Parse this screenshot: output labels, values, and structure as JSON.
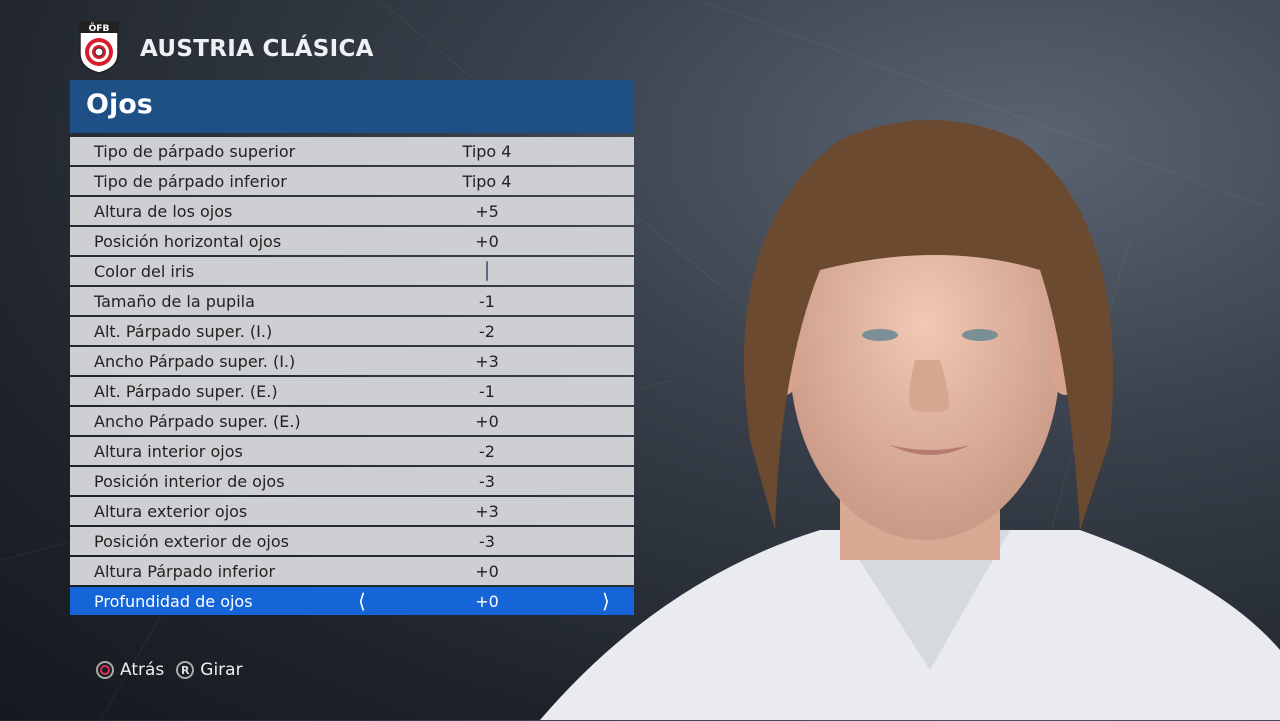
{
  "club": {
    "name": "AUSTRIA CLÁSICA",
    "logo_text": "ÖFB",
    "logo_colors": [
      "#d81e2c",
      "#ffffff"
    ]
  },
  "section": {
    "title": "Ojos"
  },
  "rows": [
    {
      "label": "Tipo de párpado superior",
      "value": "Tipo 4"
    },
    {
      "label": "Tipo de párpado inferior",
      "value": "Tipo 4"
    },
    {
      "label": "Altura de los ojos",
      "value": "+5"
    },
    {
      "label": "Posición horizontal ojos",
      "value": "+0"
    },
    {
      "label": "Color del iris",
      "value": "",
      "swatch_color": "#17212f"
    },
    {
      "label": "Tamaño de la pupila",
      "value": "-1"
    },
    {
      "label": "Alt. Párpado super. (I.)",
      "value": "-2"
    },
    {
      "label": "Ancho Párpado super. (I.)",
      "value": "+3"
    },
    {
      "label": "Alt. Párpado super. (E.)",
      "value": "-1"
    },
    {
      "label": "Ancho Párpado super. (E.)",
      "value": "+0"
    },
    {
      "label": "Altura interior ojos",
      "value": "-2"
    },
    {
      "label": "Posición interior de ojos",
      "value": "-3"
    },
    {
      "label": "Altura exterior ojos",
      "value": "+3"
    },
    {
      "label": "Posición exterior de ojos",
      "value": "-3"
    },
    {
      "label": "Altura Párpado inferior",
      "value": "+0"
    },
    {
      "label": "Profundidad de ojos",
      "value": "+0",
      "selected": true
    }
  ],
  "footer": {
    "back": {
      "icon": "circle-button-icon",
      "label": "Atrás"
    },
    "rotate": {
      "icon": "r-button-icon",
      "glyph": "R",
      "label": "Girar"
    }
  },
  "colors": {
    "header": "#1e4f85",
    "selected": "#1565d8",
    "row": "#cdcfd2"
  }
}
